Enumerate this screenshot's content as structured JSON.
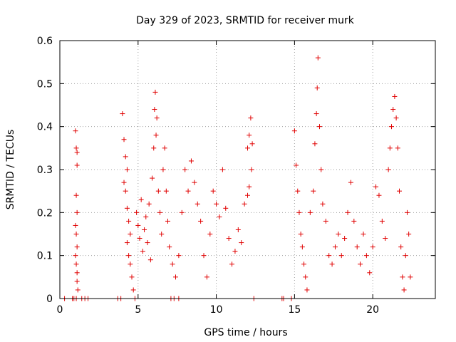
{
  "chart_data": {
    "type": "scatter",
    "title": "Day 329 of 2023, SRMTID for receiver murk",
    "xlabel": "GPS time / hours",
    "ylabel": "SRMTID / TECUs",
    "xlim": [
      0,
      24
    ],
    "ylim": [
      0,
      0.6
    ],
    "x_ticks": [
      "0",
      "5",
      "10",
      "15",
      "20"
    ],
    "y_ticks": [
      "0",
      "0.1",
      "0.2",
      "0.3",
      "0.4",
      "0.5",
      "0.6"
    ],
    "x_tick_values": [
      0,
      5,
      10,
      15,
      20
    ],
    "y_tick_values": [
      0,
      0.1,
      0.2,
      0.3,
      0.4,
      0.5,
      0.6
    ],
    "grid": true,
    "legend": "none",
    "marker": "plus",
    "color": "#e00000",
    "series": [
      {
        "values": [
          [
            0.3,
            0.0
          ],
          [
            0.8,
            0.0
          ],
          [
            0.9,
            0.0
          ],
          [
            1.05,
            0.0
          ],
          [
            1.4,
            0.0
          ],
          [
            1.6,
            0.0
          ],
          [
            1.8,
            0.0
          ],
          [
            3.7,
            0.0
          ],
          [
            3.9,
            0.0
          ],
          [
            7.1,
            0.0
          ],
          [
            7.3,
            0.0
          ],
          [
            7.6,
            0.0
          ],
          [
            12.4,
            0.0
          ],
          [
            14.2,
            0.0
          ],
          [
            14.3,
            0.0
          ],
          [
            14.8,
            0.0
          ],
          [
            1.0,
            0.39
          ],
          [
            1.05,
            0.35
          ],
          [
            1.1,
            0.34
          ],
          [
            1.1,
            0.31
          ],
          [
            1.05,
            0.24
          ],
          [
            1.1,
            0.2
          ],
          [
            1.0,
            0.17
          ],
          [
            1.05,
            0.15
          ],
          [
            1.1,
            0.12
          ],
          [
            1.0,
            0.1
          ],
          [
            1.05,
            0.08
          ],
          [
            1.1,
            0.06
          ],
          [
            1.1,
            0.04
          ],
          [
            1.15,
            0.02
          ],
          [
            4.0,
            0.43
          ],
          [
            4.1,
            0.37
          ],
          [
            4.2,
            0.33
          ],
          [
            4.3,
            0.3
          ],
          [
            4.1,
            0.27
          ],
          [
            4.2,
            0.25
          ],
          [
            4.3,
            0.21
          ],
          [
            4.4,
            0.18
          ],
          [
            4.5,
            0.15
          ],
          [
            4.3,
            0.13
          ],
          [
            4.4,
            0.1
          ],
          [
            4.5,
            0.08
          ],
          [
            4.6,
            0.05
          ],
          [
            4.7,
            0.02
          ],
          [
            4.8,
            0.0
          ],
          [
            4.9,
            0.2
          ],
          [
            5.0,
            0.17
          ],
          [
            5.1,
            0.14
          ],
          [
            5.2,
            0.23
          ],
          [
            5.3,
            0.11
          ],
          [
            5.4,
            0.16
          ],
          [
            5.5,
            0.19
          ],
          [
            5.6,
            0.13
          ],
          [
            5.7,
            0.22
          ],
          [
            5.8,
            0.09
          ],
          [
            5.9,
            0.28
          ],
          [
            6.0,
            0.35
          ],
          [
            6.05,
            0.44
          ],
          [
            6.1,
            0.48
          ],
          [
            6.2,
            0.42
          ],
          [
            6.15,
            0.38
          ],
          [
            6.3,
            0.25
          ],
          [
            6.4,
            0.2
          ],
          [
            6.5,
            0.15
          ],
          [
            6.6,
            0.3
          ],
          [
            6.7,
            0.35
          ],
          [
            6.8,
            0.25
          ],
          [
            6.9,
            0.18
          ],
          [
            7.0,
            0.12
          ],
          [
            7.2,
            0.08
          ],
          [
            7.4,
            0.05
          ],
          [
            7.6,
            0.1
          ],
          [
            7.8,
            0.2
          ],
          [
            8.0,
            0.3
          ],
          [
            8.2,
            0.25
          ],
          [
            8.4,
            0.32
          ],
          [
            8.6,
            0.27
          ],
          [
            8.8,
            0.22
          ],
          [
            9.0,
            0.18
          ],
          [
            9.2,
            0.1
          ],
          [
            9.4,
            0.05
          ],
          [
            9.6,
            0.15
          ],
          [
            9.8,
            0.25
          ],
          [
            10.0,
            0.22
          ],
          [
            10.2,
            0.19
          ],
          [
            10.4,
            0.3
          ],
          [
            10.6,
            0.21
          ],
          [
            10.8,
            0.14
          ],
          [
            11.0,
            0.08
          ],
          [
            11.2,
            0.11
          ],
          [
            11.4,
            0.16
          ],
          [
            11.6,
            0.13
          ],
          [
            11.8,
            0.22
          ],
          [
            12.0,
            0.35
          ],
          [
            12.1,
            0.38
          ],
          [
            12.2,
            0.42
          ],
          [
            12.3,
            0.36
          ],
          [
            12.25,
            0.3
          ],
          [
            12.1,
            0.26
          ],
          [
            12.0,
            0.24
          ],
          [
            15.0,
            0.39
          ],
          [
            15.1,
            0.31
          ],
          [
            15.2,
            0.25
          ],
          [
            15.3,
            0.2
          ],
          [
            15.4,
            0.15
          ],
          [
            15.5,
            0.12
          ],
          [
            15.6,
            0.08
          ],
          [
            15.7,
            0.05
          ],
          [
            15.8,
            0.02
          ],
          [
            16.0,
            0.2
          ],
          [
            16.2,
            0.25
          ],
          [
            16.3,
            0.36
          ],
          [
            16.4,
            0.43
          ],
          [
            16.45,
            0.49
          ],
          [
            16.5,
            0.56
          ],
          [
            16.6,
            0.4
          ],
          [
            16.7,
            0.3
          ],
          [
            16.8,
            0.22
          ],
          [
            17.0,
            0.18
          ],
          [
            17.2,
            0.1
          ],
          [
            17.4,
            0.08
          ],
          [
            17.6,
            0.12
          ],
          [
            17.8,
            0.15
          ],
          [
            18.0,
            0.1
          ],
          [
            18.2,
            0.14
          ],
          [
            18.4,
            0.2
          ],
          [
            18.6,
            0.27
          ],
          [
            18.8,
            0.18
          ],
          [
            19.0,
            0.12
          ],
          [
            19.2,
            0.08
          ],
          [
            19.4,
            0.15
          ],
          [
            19.6,
            0.1
          ],
          [
            19.8,
            0.06
          ],
          [
            20.0,
            0.12
          ],
          [
            20.2,
            0.26
          ],
          [
            20.4,
            0.24
          ],
          [
            20.6,
            0.18
          ],
          [
            20.8,
            0.14
          ],
          [
            21.0,
            0.3
          ],
          [
            21.1,
            0.35
          ],
          [
            21.2,
            0.4
          ],
          [
            21.3,
            0.44
          ],
          [
            21.4,
            0.47
          ],
          [
            21.5,
            0.42
          ],
          [
            21.6,
            0.35
          ],
          [
            21.7,
            0.25
          ],
          [
            21.8,
            0.12
          ],
          [
            21.9,
            0.05
          ],
          [
            22.0,
            0.02
          ],
          [
            22.1,
            0.1
          ],
          [
            22.2,
            0.2
          ],
          [
            22.3,
            0.15
          ],
          [
            22.4,
            0.05
          ]
        ]
      }
    ]
  }
}
